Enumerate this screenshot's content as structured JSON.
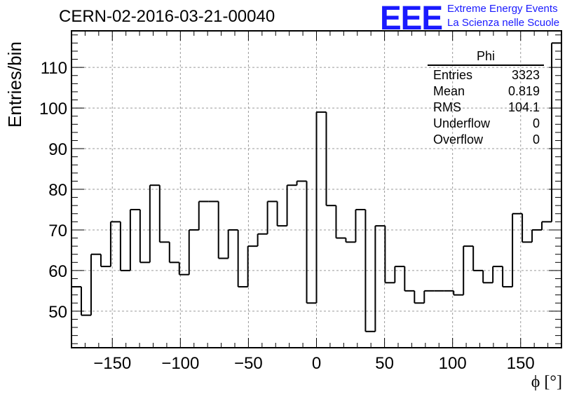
{
  "title": "CERN-02-2016-03-21-00040",
  "logo": {
    "text": "EEE",
    "line1": "Extreme Energy Events",
    "line2": "La Scienza nelle Scuole",
    "color": "#1a1aff"
  },
  "stats_box": {
    "title": "Phi",
    "rows": [
      {
        "label": "Entries",
        "value": "3323"
      },
      {
        "label": "Mean",
        "value": "0.819"
      },
      {
        "label": "RMS",
        "value": "104.1"
      },
      {
        "label": "Underflow",
        "value": "0"
      },
      {
        "label": "Overflow",
        "value": "0"
      }
    ]
  },
  "chart_data": {
    "type": "histogram",
    "title": "CERN-02-2016-03-21-00040",
    "xlabel": "ϕ [°]",
    "ylabel": "Entries/bin",
    "xlim": [
      -180,
      180
    ],
    "ylim": [
      41,
      119
    ],
    "bin_width": 7.2,
    "bin_edges_start": -180,
    "values": [
      56,
      49,
      64,
      61,
      72,
      60,
      75,
      62,
      81,
      67,
      62,
      59,
      70,
      77,
      77,
      63,
      70,
      56,
      66,
      69,
      77,
      71,
      81,
      82,
      52,
      99,
      76,
      68,
      67,
      75,
      45,
      71,
      57,
      61,
      55,
      52,
      55,
      55,
      55,
      54,
      66,
      60,
      57,
      61,
      56,
      74,
      67,
      70,
      72,
      116
    ],
    "xticks": [
      -150,
      -100,
      -50,
      0,
      50,
      100,
      150
    ],
    "yticks": [
      50,
      60,
      70,
      80,
      90,
      100,
      110
    ],
    "grid": true,
    "line_color": "#000000"
  }
}
